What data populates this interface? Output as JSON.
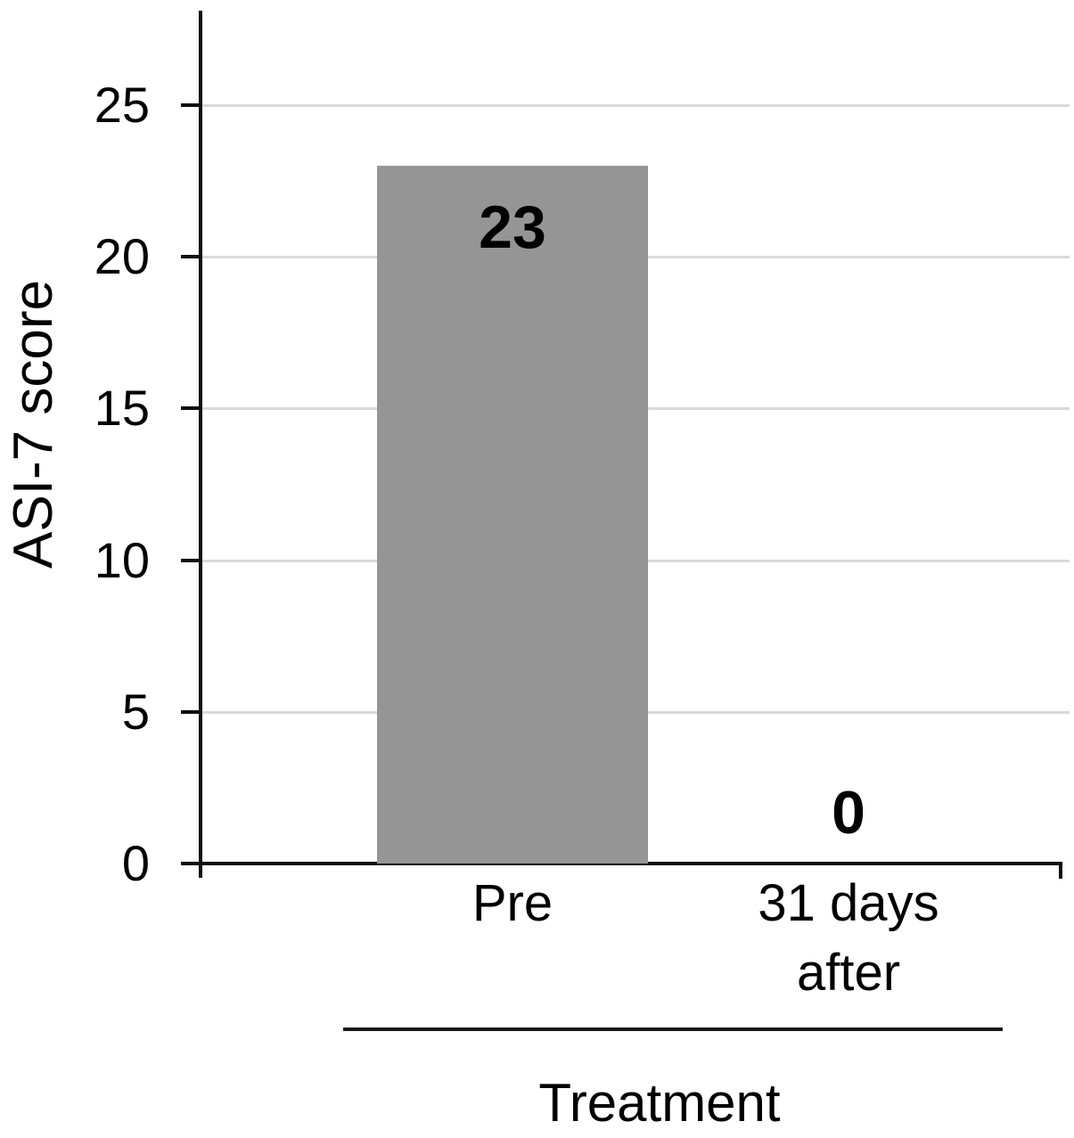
{
  "chart_data": {
    "type": "bar",
    "title": "",
    "categories": [
      "Pre",
      "31 days\nafter"
    ],
    "values": [
      23,
      0
    ],
    "data_labels": [
      "23",
      "0"
    ],
    "xlabel": "Treatment",
    "ylabel": "ASI-7 score",
    "y_ticks": [
      0,
      5,
      10,
      15,
      20,
      25
    ],
    "ylim": [
      0,
      28
    ],
    "grid": "horizontal",
    "legend": "none",
    "colors": {
      "bar_fill": "#959595",
      "gridline": "#d9d9d9",
      "axis": "#0d0d0d",
      "text": "#000000",
      "background": "#ffffff"
    }
  }
}
